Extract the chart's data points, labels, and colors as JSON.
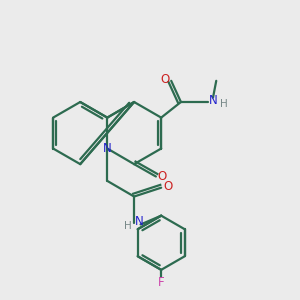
{
  "background_color": "#ebebeb",
  "bond_color": "#2d6b50",
  "N_color": "#2222cc",
  "O_color": "#cc2222",
  "F_color": "#cc44aa",
  "H_color": "#778888",
  "line_width": 1.6,
  "figsize": [
    3.0,
    3.0
  ],
  "dpi": 100,
  "xlim": [
    0,
    10
  ],
  "ylim": [
    0,
    10
  ]
}
